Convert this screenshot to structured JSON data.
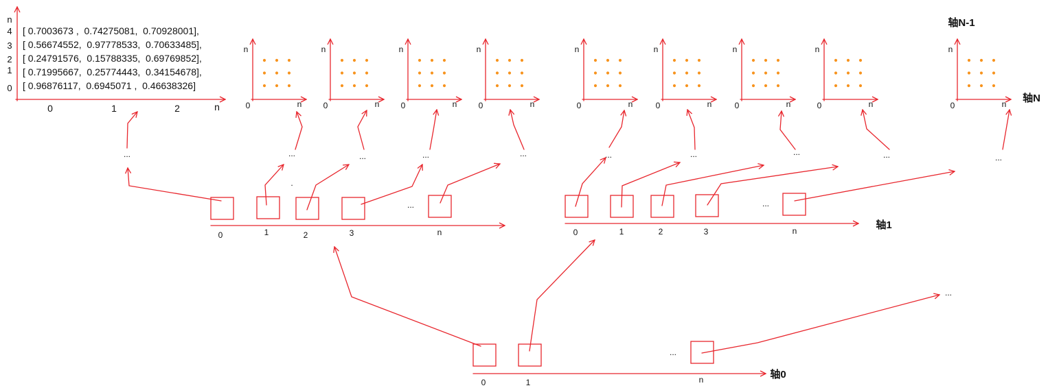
{
  "colors": {
    "line": "#e8262d",
    "dot": "#f7931e",
    "text": "#111111",
    "background": "#ffffff"
  },
  "main_plot": {
    "y_axis_label": "n",
    "rows": [
      {
        "index": "4",
        "values": "[ 0.7003673 ,  0.74275081,  0.70928001],"
      },
      {
        "index": "3",
        "values": "[ 0.56674552,  0.97778533,  0.70633485],"
      },
      {
        "index": "2",
        "values": "[ 0.24791576,  0.15788335,  0.69769852],"
      },
      {
        "index": "1",
        "values": "[ 0.71995667,  0.25774443,  0.34154678],"
      },
      {
        "index": "0",
        "values": "[ 0.96876117,  0.6945071 ,  0.46638326]"
      }
    ],
    "x_ticks": [
      "0",
      "1",
      "2",
      "n"
    ]
  },
  "sub_plots": [
    {
      "y_label": "n",
      "origin_label": "0",
      "x_label": "n"
    },
    {
      "y_label": "n",
      "origin_label": "0",
      "x_label": "n"
    },
    {
      "y_label": "n",
      "origin_label": "0",
      "x_label": "n"
    },
    {
      "y_label": "n",
      "origin_label": "0",
      "x_label": "n"
    },
    {
      "y_label": "n",
      "origin_label": "0",
      "x_label": "n"
    },
    {
      "y_label": "n",
      "origin_label": "0",
      "x_label": "n"
    },
    {
      "y_label": "n",
      "origin_label": "0",
      "x_label": "n"
    },
    {
      "y_label": "n",
      "origin_label": "0",
      "x_label": "n"
    },
    {
      "y_label": "n",
      "origin_label": "0",
      "x_label": "n"
    }
  ],
  "axis_n": {
    "upper_label": "轴N-1",
    "label": "轴N"
  },
  "top_ellipses": [
    "...",
    "...",
    "...",
    "...",
    "...",
    "...",
    "...",
    "...",
    "...",
    "..."
  ],
  "stray_mark": ".",
  "axis1": {
    "label": "轴1",
    "left": {
      "ticks": [
        "0",
        "1",
        "2",
        "3",
        "n"
      ],
      "gap": "..."
    },
    "right": {
      "ticks": [
        "0",
        "1",
        "2",
        "3",
        "n"
      ],
      "gap": "..."
    }
  },
  "axis0": {
    "label": "轴0",
    "ticks": [
      "0",
      "1",
      "n"
    ],
    "gap": "...",
    "continuation": "..."
  }
}
